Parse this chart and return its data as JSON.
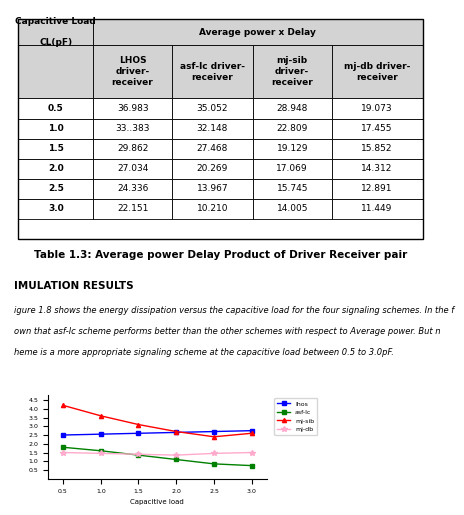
{
  "title": "Table 1.3: Average power Delay Product of Driver Receiver pair",
  "rows": [
    [
      "0.5",
      "36.983",
      "35.052",
      "28.948",
      "19.073"
    ],
    [
      "1.0",
      "33..383",
      "32.148",
      "22.809",
      "17.455"
    ],
    [
      "1.5",
      "29.862",
      "27.468",
      "19.129",
      "15.852"
    ],
    [
      "2.0",
      "27.034",
      "20.269",
      "17.069",
      "14.312"
    ],
    [
      "2.5",
      "24.336",
      "13.967",
      "15.745",
      "12.891"
    ],
    [
      "3.0",
      "22.151",
      "10.210",
      "14.005",
      "11.449"
    ]
  ],
  "bg_color": "#ffffff",
  "header_bg": "#d3d3d3",
  "border_color": "#000000",
  "cell_fontsize": 6.5,
  "header_fontsize": 6.5,
  "title_fontsize": 7.5,
  "section_fontsize": 7.5,
  "body_fontsize": 6.0,
  "simulation_heading": "IMULATION RESULTS",
  "body_text": [
    "igure 1.8 shows the energy dissipation versus the capacitive load for the four signaling schemes. In the f",
    "own that asf-lc scheme performs better than the other schemes with respect to Average power. But n",
    "heme is a more appropriate signaling scheme at the capacitive load between 0.5 to 3.0pF."
  ],
  "x_vals": [
    0.5,
    1.0,
    1.5,
    2.0,
    2.5,
    3.0
  ],
  "lhos_y": [
    2.5,
    2.55,
    2.6,
    2.65,
    2.7,
    2.75
  ],
  "asflc_y": [
    1.8,
    1.6,
    1.35,
    1.1,
    0.85,
    0.75
  ],
  "mjsib_y": [
    4.2,
    3.6,
    3.1,
    2.7,
    2.4,
    2.6
  ],
  "mjdb_y": [
    1.5,
    1.45,
    1.4,
    1.35,
    1.45,
    1.5
  ]
}
